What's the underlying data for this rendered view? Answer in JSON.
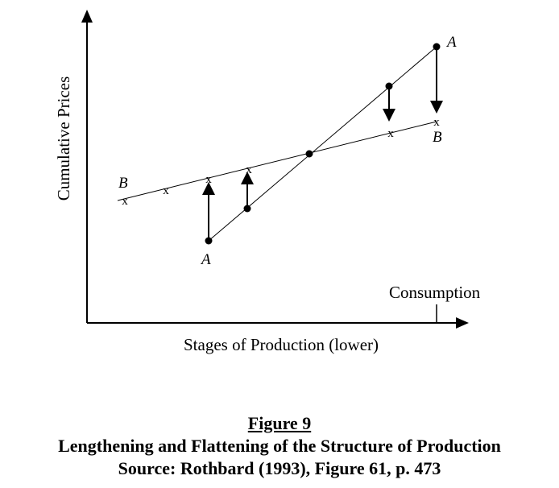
{
  "diagram": {
    "y_axis_label": "Cumulative Prices",
    "x_axis_label": "Stages of Production (lower)",
    "consumption_label": "Consumption",
    "line_a_labels": [
      "A",
      "A"
    ],
    "line_b_labels": [
      "B",
      "B"
    ],
    "x_marker": "x"
  },
  "caption": {
    "title": "Figure 9",
    "subtitle": "Lengthening and Flattening of the Structure of Production",
    "source": "Source: Rothbard (1993), Figure 61, p. 473"
  },
  "colors": {
    "ink": "#000000",
    "background": "#ffffff"
  },
  "icons": [
    "arrow-up-icon",
    "arrow-down-icon",
    "arrow-right-icon"
  ]
}
